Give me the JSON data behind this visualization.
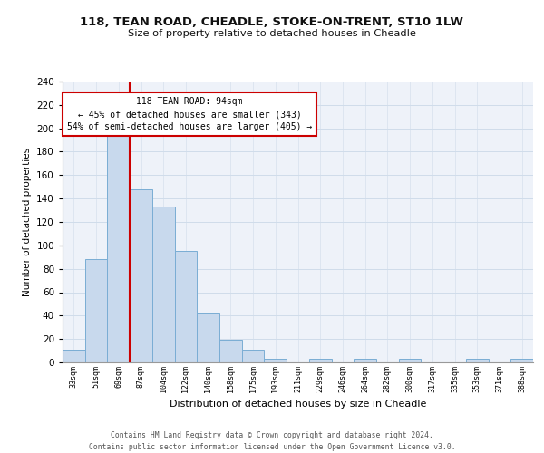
{
  "title1": "118, TEAN ROAD, CHEADLE, STOKE-ON-TRENT, ST10 1LW",
  "title2": "Size of property relative to detached houses in Cheadle",
  "xlabel": "Distribution of detached houses by size in Cheadle",
  "ylabel": "Number of detached properties",
  "bar_labels": [
    "33sqm",
    "51sqm",
    "69sqm",
    "87sqm",
    "104sqm",
    "122sqm",
    "140sqm",
    "158sqm",
    "175sqm",
    "193sqm",
    "211sqm",
    "229sqm",
    "246sqm",
    "264sqm",
    "282sqm",
    "300sqm",
    "317sqm",
    "335sqm",
    "353sqm",
    "371sqm",
    "388sqm"
  ],
  "bar_values": [
    11,
    88,
    195,
    148,
    133,
    95,
    42,
    19,
    11,
    3,
    0,
    3,
    0,
    3,
    0,
    3,
    0,
    0,
    3,
    0,
    3
  ],
  "bar_color": "#c8d9ed",
  "bar_edge_color": "#7aadd4",
  "grid_color": "#d0dcea",
  "background_color": "#eef2f9",
  "annotation_line1": "118 TEAN ROAD: 94sqm",
  "annotation_line2": "← 45% of detached houses are smaller (343)",
  "annotation_line3": "54% of semi-detached houses are larger (405) →",
  "annotation_box_edge_color": "#cc0000",
  "vline_x_index": 2.5,
  "vline_color": "#cc0000",
  "ylim": [
    0,
    240
  ],
  "yticks": [
    0,
    20,
    40,
    60,
    80,
    100,
    120,
    140,
    160,
    180,
    200,
    220,
    240
  ],
  "footer_line1": "Contains HM Land Registry data © Crown copyright and database right 2024.",
  "footer_line2": "Contains public sector information licensed under the Open Government Licence v3.0."
}
